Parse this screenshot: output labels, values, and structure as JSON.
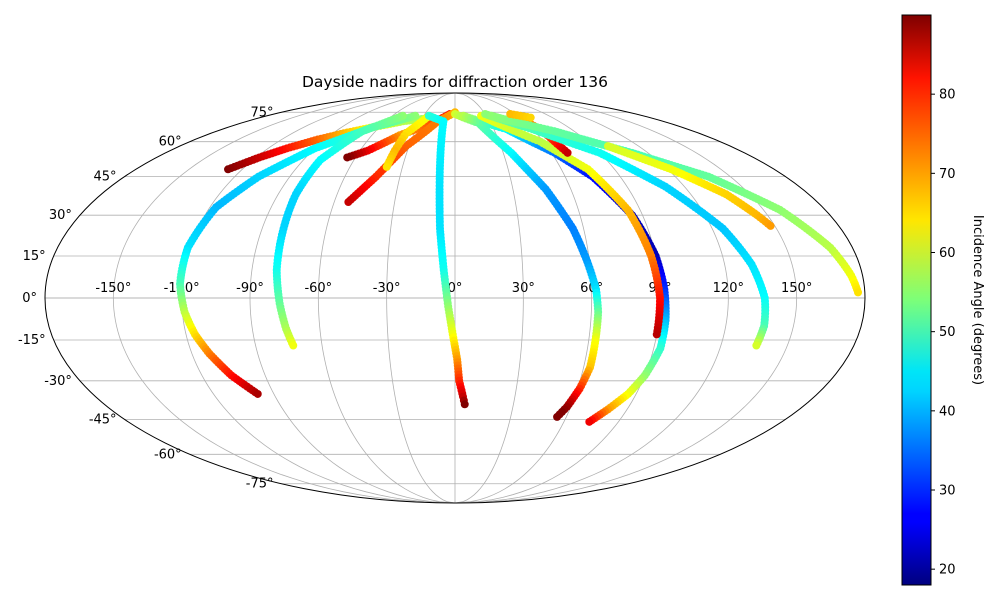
{
  "chart_data": {
    "type": "scatter",
    "projection": "mollweide",
    "title": "Dayside nadirs for diffraction order 136",
    "xlabel": "",
    "ylabel": "",
    "xlim": [
      -180,
      180
    ],
    "ylim": [
      -90,
      90
    ],
    "grid": true,
    "lon_ticks": [
      -150,
      -120,
      -90,
      -60,
      -30,
      0,
      30,
      60,
      90,
      120,
      150
    ],
    "lat_ticks": [
      -75,
      -60,
      -45,
      -30,
      -15,
      0,
      15,
      30,
      45,
      60,
      75
    ],
    "lon_tick_labels": [
      "-150°",
      "-120°",
      "-90°",
      "-60°",
      "-30°",
      "0°",
      "30°",
      "60°",
      "90°",
      "120°",
      "150°"
    ],
    "lat_tick_labels": [
      "-75°",
      "-60°",
      "-45°",
      "-30°",
      "-15°",
      "0°",
      "15°",
      "30°",
      "45°",
      "60°",
      "75°"
    ],
    "colorbar": {
      "label": "Incidence Angle (degrees)",
      "colormap": "jet",
      "min": 18,
      "max": 90,
      "ticks": [
        20,
        30,
        40,
        50,
        60,
        70,
        80
      ],
      "tick_labels": [
        "20",
        "30",
        "40",
        "50",
        "60",
        "70",
        "80"
      ]
    },
    "series": [
      {
        "points": [
          {
            "lon": -128,
            "lat": 48,
            "c": 90
          },
          {
            "lon": -118,
            "lat": 53,
            "c": 85
          },
          {
            "lon": -108,
            "lat": 57,
            "c": 80
          },
          {
            "lon": -95,
            "lat": 61,
            "c": 74
          },
          {
            "lon": -82,
            "lat": 64,
            "c": 68
          },
          {
            "lon": -65,
            "lat": 67,
            "c": 62
          },
          {
            "lon": -45,
            "lat": 70,
            "c": 58
          },
          {
            "lon": -20,
            "lat": 72,
            "c": 55
          }
        ]
      },
      {
        "points": [
          {
            "lon": -38,
            "lat": 73,
            "c": 55
          },
          {
            "lon": -65,
            "lat": 67,
            "c": 50
          },
          {
            "lon": -90,
            "lat": 57,
            "c": 45
          },
          {
            "lon": -107,
            "lat": 45,
            "c": 42
          },
          {
            "lon": -117,
            "lat": 33,
            "c": 40
          },
          {
            "lon": -121,
            "lat": 18,
            "c": 43
          },
          {
            "lon": -121,
            "lat": 5,
            "c": 50
          },
          {
            "lon": -119,
            "lat": -5,
            "c": 58
          },
          {
            "lon": -116,
            "lat": -13,
            "c": 65
          },
          {
            "lon": -112,
            "lat": -20,
            "c": 72
          },
          {
            "lon": -106,
            "lat": -28,
            "c": 80
          },
          {
            "lon": -98,
            "lat": -35,
            "c": 87
          }
        ]
      },
      {
        "points": [
          {
            "lon": -50,
            "lat": 73,
            "c": 55
          },
          {
            "lon": -70,
            "lat": 65,
            "c": 50
          },
          {
            "lon": -80,
            "lat": 52,
            "c": 45
          },
          {
            "lon": -81,
            "lat": 38,
            "c": 42
          },
          {
            "lon": -80,
            "lat": 25,
            "c": 42
          },
          {
            "lon": -79,
            "lat": 10,
            "c": 46
          },
          {
            "lon": -77,
            "lat": -2,
            "c": 52
          },
          {
            "lon": -75,
            "lat": -11,
            "c": 57
          },
          {
            "lon": -73,
            "lat": -17,
            "c": 62
          }
        ]
      },
      {
        "points": [
          {
            "lon": -5,
            "lat": 74,
            "c": 80
          },
          {
            "lon": -20,
            "lat": 69,
            "c": 76
          },
          {
            "lon": -40,
            "lat": 63,
            "c": 70
          },
          {
            "lon": -55,
            "lat": 56,
            "c": 82
          },
          {
            "lon": -65,
            "lat": 53,
            "c": 90
          }
        ]
      },
      {
        "points": [
          {
            "lon": 0,
            "lat": 75,
            "c": 68
          },
          {
            "lon": -15,
            "lat": 70,
            "c": 72
          },
          {
            "lon": -32,
            "lat": 58,
            "c": 74
          },
          {
            "lon": -43,
            "lat": 45,
            "c": 78
          },
          {
            "lon": -53,
            "lat": 35,
            "c": 85
          }
        ]
      },
      {
        "points": [
          {
            "lon": -26,
            "lat": 72,
            "c": 62
          },
          {
            "lon": -36,
            "lat": 64,
            "c": 65
          },
          {
            "lon": -38,
            "lat": 56,
            "c": 68
          },
          {
            "lon": -39,
            "lat": 49,
            "c": 65
          }
        ]
      },
      {
        "points": [
          {
            "lon": -25,
            "lat": 73,
            "c": 48
          },
          {
            "lon": -10,
            "lat": 70,
            "c": 45
          },
          {
            "lon": -9,
            "lat": 55,
            "c": 44
          },
          {
            "lon": -8,
            "lat": 40,
            "c": 43
          },
          {
            "lon": -7,
            "lat": 25,
            "c": 43
          },
          {
            "lon": -5,
            "lat": 10,
            "c": 46
          },
          {
            "lon": -3,
            "lat": -3,
            "c": 55
          },
          {
            "lon": -1,
            "lat": -13,
            "c": 62
          },
          {
            "lon": 1,
            "lat": -22,
            "c": 70
          },
          {
            "lon": 2,
            "lat": -30,
            "c": 78
          },
          {
            "lon": 4,
            "lat": -36,
            "c": 85
          },
          {
            "lon": 5,
            "lat": -39,
            "c": 90
          }
        ]
      },
      {
        "points": [
          {
            "lon": 0,
            "lat": 74,
            "c": 60
          },
          {
            "lon": 20,
            "lat": 69,
            "c": 52
          },
          {
            "lon": 35,
            "lat": 55,
            "c": 45
          },
          {
            "lon": 47,
            "lat": 40,
            "c": 38
          },
          {
            "lon": 55,
            "lat": 25,
            "c": 36
          },
          {
            "lon": 59,
            "lat": 13,
            "c": 38
          },
          {
            "lon": 62,
            "lat": 3,
            "c": 43
          },
          {
            "lon": 63,
            "lat": -5,
            "c": 52
          },
          {
            "lon": 63,
            "lat": -15,
            "c": 62
          },
          {
            "lon": 63,
            "lat": -25,
            "c": 67
          },
          {
            "lon": 61,
            "lat": -33,
            "c": 78
          },
          {
            "lon": 58,
            "lat": -40,
            "c": 88
          },
          {
            "lon": 55,
            "lat": -44,
            "c": 92
          }
        ]
      },
      {
        "points": [
          {
            "lon": 8,
            "lat": 73,
            "c": 58
          },
          {
            "lon": 40,
            "lat": 66,
            "c": 45
          },
          {
            "lon": 62,
            "lat": 55,
            "c": 35
          },
          {
            "lon": 75,
            "lat": 45,
            "c": 28
          },
          {
            "lon": 85,
            "lat": 30,
            "c": 22
          },
          {
            "lon": 90,
            "lat": 15,
            "c": 22
          },
          {
            "lon": 92,
            "lat": 3,
            "c": 30
          },
          {
            "lon": 93,
            "lat": -8,
            "c": 40
          },
          {
            "lon": 93,
            "lat": -18,
            "c": 48
          },
          {
            "lon": 90,
            "lat": -28,
            "c": 55
          },
          {
            "lon": 86,
            "lat": -35,
            "c": 62
          },
          {
            "lon": 80,
            "lat": -41,
            "c": 70
          },
          {
            "lon": 74,
            "lat": -46,
            "c": 82
          }
        ]
      },
      {
        "points": [
          {
            "lon": 25,
            "lat": 73,
            "c": 62
          },
          {
            "lon": 58,
            "lat": 60,
            "c": 58
          },
          {
            "lon": 75,
            "lat": 48,
            "c": 62
          },
          {
            "lon": 84,
            "lat": 32,
            "c": 68
          },
          {
            "lon": 88,
            "lat": 15,
            "c": 72
          },
          {
            "lon": 90,
            "lat": 0,
            "c": 80
          },
          {
            "lon": 90,
            "lat": -13,
            "c": 86
          }
        ]
      },
      {
        "points": [
          {
            "lon": 60,
            "lat": 72,
            "c": 68
          },
          {
            "lon": 66,
            "lat": 65,
            "c": 74
          },
          {
            "lon": 68,
            "lat": 59,
            "c": 80
          },
          {
            "lon": 70,
            "lat": 55,
            "c": 85
          }
        ]
      },
      {
        "points": [
          {
            "lon": 30,
            "lat": 74,
            "c": 55
          },
          {
            "lon": 60,
            "lat": 66,
            "c": 50
          },
          {
            "lon": 90,
            "lat": 55,
            "c": 46
          },
          {
            "lon": 110,
            "lat": 41,
            "c": 42
          },
          {
            "lon": 125,
            "lat": 25,
            "c": 41
          },
          {
            "lon": 132,
            "lat": 12,
            "c": 43
          },
          {
            "lon": 136,
            "lat": 0,
            "c": 45
          },
          {
            "lon": 137,
            "lat": -10,
            "c": 50
          },
          {
            "lon": 136,
            "lat": -17,
            "c": 60
          }
        ]
      },
      {
        "points": [
          {
            "lon": 35,
            "lat": 73,
            "c": 55
          },
          {
            "lon": 75,
            "lat": 65,
            "c": 52
          },
          {
            "lon": 110,
            "lat": 55,
            "c": 50
          },
          {
            "lon": 138,
            "lat": 45,
            "c": 52
          },
          {
            "lon": 158,
            "lat": 32,
            "c": 55
          },
          {
            "lon": 170,
            "lat": 18,
            "c": 58
          },
          {
            "lon": 175,
            "lat": 8,
            "c": 62
          },
          {
            "lon": 177,
            "lat": 2,
            "c": 65
          }
        ]
      },
      {
        "points": [
          {
            "lon": 100,
            "lat": 58,
            "c": 60
          },
          {
            "lon": 122,
            "lat": 48,
            "c": 62
          },
          {
            "lon": 138,
            "lat": 38,
            "c": 66
          },
          {
            "lon": 145,
            "lat": 30,
            "c": 68
          },
          {
            "lon": 148,
            "lat": 26,
            "c": 70
          }
        ]
      },
      {
        "points": [
          {
            "lon": 55,
            "lat": 74,
            "c": 68
          },
          {
            "lon": 70,
            "lat": 72,
            "c": 66
          }
        ]
      }
    ]
  }
}
